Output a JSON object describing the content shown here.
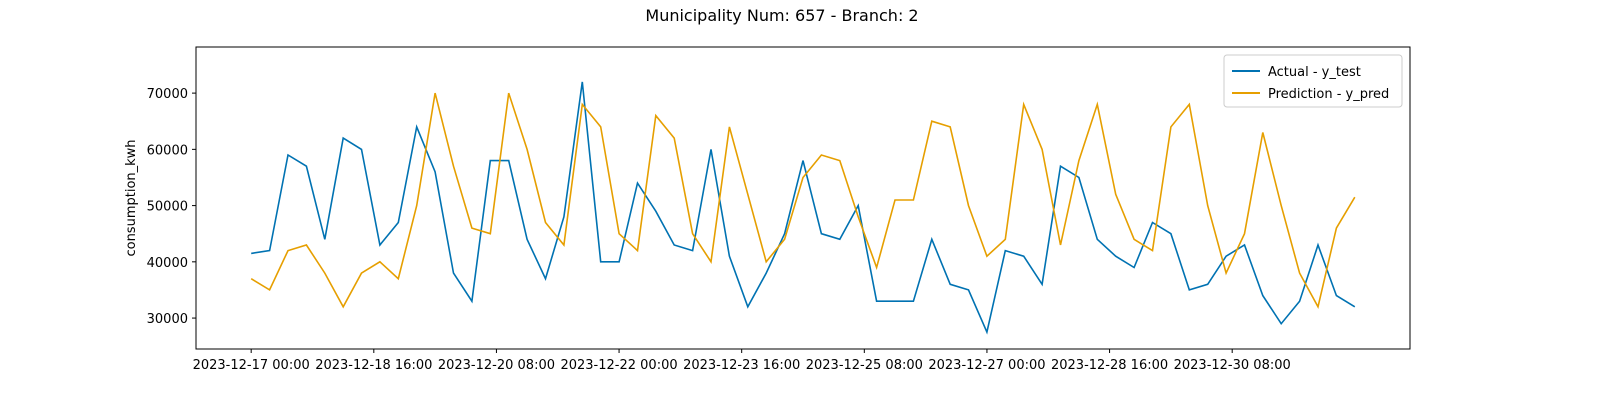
{
  "chart_data": {
    "type": "line",
    "title": "Municipality Num: 657 - Branch: 2",
    "y_label": "consumption_kwh",
    "x": [
      "2023-12-17 00:00",
      "2023-12-17 06:00",
      "2023-12-17 12:00",
      "2023-12-17 18:00",
      "2023-12-18 00:00",
      "2023-12-18 06:00",
      "2023-12-18 12:00",
      "2023-12-18 18:00",
      "2023-12-19 00:00",
      "2023-12-19 06:00",
      "2023-12-19 12:00",
      "2023-12-19 18:00",
      "2023-12-20 00:00",
      "2023-12-20 06:00",
      "2023-12-20 12:00",
      "2023-12-20 18:00",
      "2023-12-21 00:00",
      "2023-12-21 06:00",
      "2023-12-21 12:00",
      "2023-12-21 18:00",
      "2023-12-22 00:00",
      "2023-12-22 06:00",
      "2023-12-22 12:00",
      "2023-12-22 18:00",
      "2023-12-23 00:00",
      "2023-12-23 06:00",
      "2023-12-23 12:00",
      "2023-12-23 18:00",
      "2023-12-24 00:00",
      "2023-12-24 06:00",
      "2023-12-24 12:00",
      "2023-12-24 18:00",
      "2023-12-25 00:00",
      "2023-12-25 06:00",
      "2023-12-25 12:00",
      "2023-12-25 18:00",
      "2023-12-26 00:00",
      "2023-12-26 06:00",
      "2023-12-26 12:00",
      "2023-12-26 18:00",
      "2023-12-27 00:00",
      "2023-12-27 06:00",
      "2023-12-27 12:00",
      "2023-12-27 18:00",
      "2023-12-28 00:00",
      "2023-12-28 06:00",
      "2023-12-28 12:00",
      "2023-12-28 18:00",
      "2023-12-29 00:00",
      "2023-12-29 06:00",
      "2023-12-29 12:00",
      "2023-12-29 18:00",
      "2023-12-30 00:00",
      "2023-12-30 06:00",
      "2023-12-30 12:00",
      "2023-12-30 18:00",
      "2023-12-31 00:00",
      "2023-12-31 06:00",
      "2023-12-31 12:00",
      "2023-12-31 18:00",
      "2024-01-01 00:00"
    ],
    "series": [
      {
        "name": "Actual - y_test",
        "color": "#0072b2",
        "values": [
          41500,
          42000,
          59000,
          57000,
          44000,
          62000,
          60000,
          43000,
          47000,
          64000,
          56000,
          38000,
          33000,
          58000,
          58000,
          44000,
          37000,
          48000,
          72000,
          40000,
          40000,
          54000,
          49000,
          43000,
          42000,
          60000,
          41000,
          32000,
          38000,
          45000,
          58000,
          45000,
          44000,
          50000,
          33000,
          33000,
          33000,
          44000,
          36000,
          35000,
          27500,
          42000,
          41000,
          36000,
          57000,
          55000,
          44000,
          41000,
          39000,
          47000,
          45000,
          35000,
          36000,
          41000,
          43000,
          34000,
          29000,
          33000,
          43000,
          34000,
          32000
        ]
      },
      {
        "name": "Prediction - y_pred",
        "color": "#e69f00",
        "values": [
          37000,
          35000,
          42000,
          43000,
          38000,
          32000,
          38000,
          40000,
          37000,
          50000,
          70000,
          57000,
          46000,
          45000,
          70000,
          60000,
          47000,
          43000,
          68000,
          64000,
          45000,
          42000,
          66000,
          62000,
          45000,
          40000,
          64000,
          52000,
          40000,
          44000,
          55000,
          59000,
          58000,
          48000,
          39000,
          51000,
          51000,
          65000,
          64000,
          50000,
          41000,
          44000,
          68000,
          60000,
          43000,
          58000,
          68000,
          52000,
          44000,
          42000,
          64000,
          68000,
          50000,
          38000,
          45000,
          63000,
          50000,
          38000,
          32000,
          46000,
          51500
        ]
      }
    ],
    "xlim": [
      "2023-12-16 06:00",
      "2024-01-01 18:00"
    ],
    "xticks": [
      "2023-12-17 00:00",
      "2023-12-18 16:00",
      "2023-12-20 08:00",
      "2023-12-22 00:00",
      "2023-12-23 16:00",
      "2023-12-25 08:00",
      "2023-12-27 00:00",
      "2023-12-28 16:00",
      "2023-12-30 08:00"
    ],
    "ylim": [
      24500,
      78200
    ],
    "yticks": [
      30000,
      40000,
      50000,
      60000,
      70000
    ],
    "legend": "upper right"
  }
}
